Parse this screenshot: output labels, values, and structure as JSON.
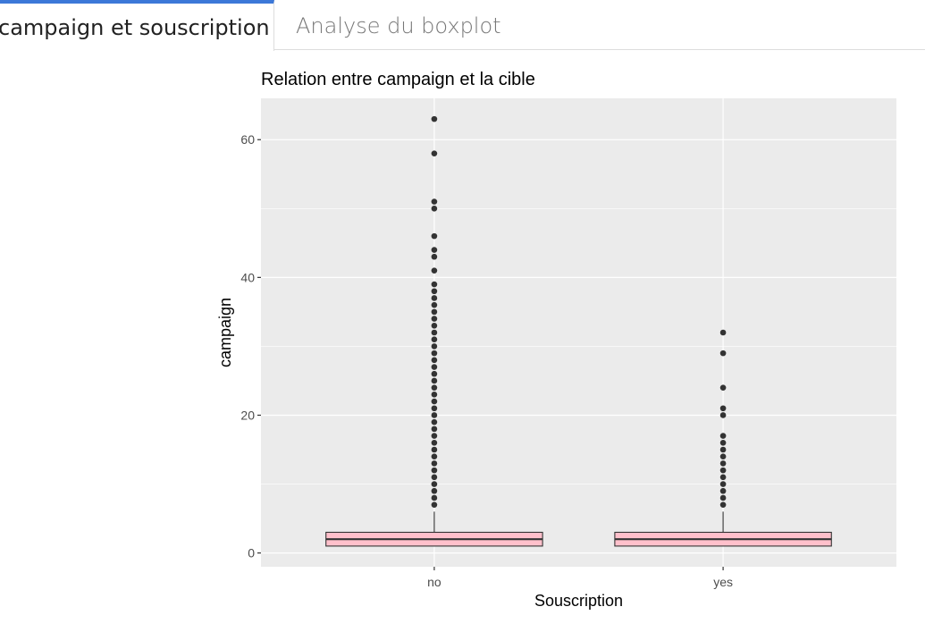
{
  "tabs": [
    {
      "label": "campaign et souscription",
      "active": true
    },
    {
      "label": "Analyse du boxplot",
      "active": false
    }
  ],
  "colors": {
    "accent": "#3c78d8",
    "panel_background": "#ebebeb",
    "box_fill": "#ffc0cb",
    "outline": "#333333"
  },
  "chart_data": {
    "type": "boxplot",
    "title": "Relation entre campaign et la cible",
    "xlabel": "Souscription",
    "ylabel": "campaign",
    "categories": [
      "no",
      "yes"
    ],
    "yticks": [
      0,
      20,
      40,
      60
    ],
    "ylim": [
      -2,
      66
    ],
    "grid": true,
    "boxes": [
      {
        "category": "no",
        "q1": 1,
        "median": 2,
        "q3": 3,
        "whisker_low": 1,
        "whisker_high": 6,
        "outliers": [
          7,
          8,
          9,
          10,
          11,
          12,
          13,
          14,
          15,
          16,
          17,
          18,
          19,
          20,
          21,
          22,
          23,
          24,
          25,
          26,
          27,
          28,
          29,
          30,
          31,
          32,
          33,
          34,
          35,
          36,
          37,
          38,
          39,
          41,
          43,
          44,
          46,
          50,
          51,
          58,
          63
        ]
      },
      {
        "category": "yes",
        "q1": 1,
        "median": 2,
        "q3": 3,
        "whisker_low": 1,
        "whisker_high": 6,
        "outliers": [
          7,
          8,
          9,
          10,
          11,
          12,
          13,
          14,
          15,
          16,
          17,
          20,
          21,
          24,
          29,
          32
        ]
      }
    ]
  }
}
